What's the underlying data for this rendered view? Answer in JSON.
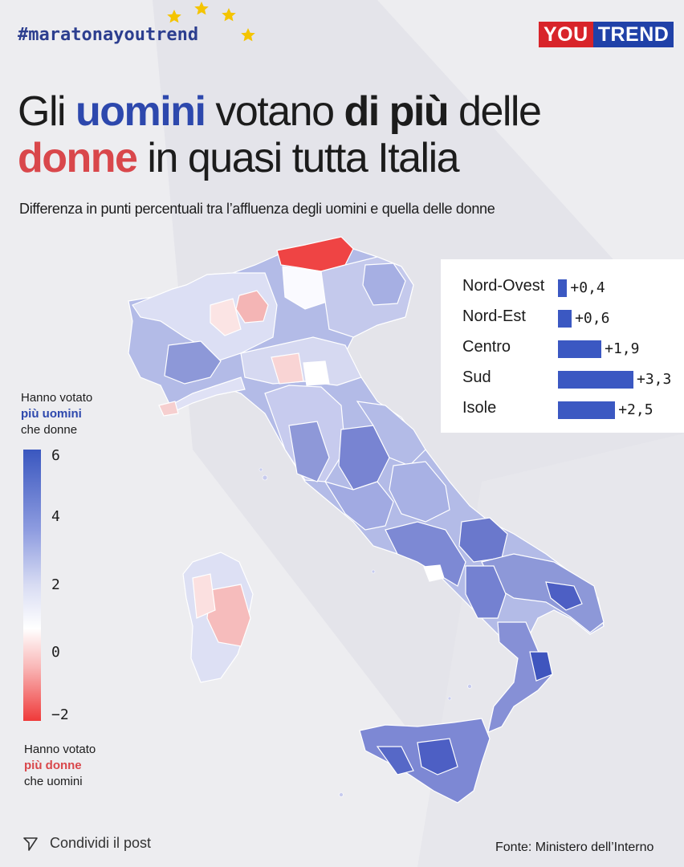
{
  "header": {
    "hashtag": "#maratonayoutrend",
    "logo_you": "YOU",
    "logo_trend": "TREND"
  },
  "title": {
    "line1_part1": "Gli ",
    "line1_men": "uomini",
    "line1_part2": " votano ",
    "line1_more": "di più",
    "line1_part3": " delle",
    "line2_women": "donne",
    "line2_part": " in quasi tutta Italia"
  },
  "subtitle": "Differenza in punti percentuali tra l’affluenza degli uomini e quella delle donne",
  "legend": {
    "top_line1": "Hanno votato",
    "top_line2": "più uomini",
    "top_line3": "che donne",
    "bottom_line1": "Hanno votato",
    "bottom_line2": "più donne",
    "bottom_line3": "che uomini"
  },
  "footer": {
    "share_label": "Condividi il post",
    "source": "Fonte: Ministero dell’Interno"
  },
  "colors": {
    "men_blue": "#2d48ad",
    "women_red": "#d9474b",
    "bar_blue": "#3b58c2"
  },
  "chart_data": [
    {
      "type": "bar",
      "orientation": "horizontal",
      "categories": [
        "Nord-Ovest",
        "Nord-Est",
        "Centro",
        "Sud",
        "Isole"
      ],
      "values": [
        0.4,
        0.6,
        1.9,
        3.3,
        2.5
      ],
      "value_labels": [
        "+0,4",
        "+0,6",
        "+1,9",
        "+3,3",
        "+2,5"
      ],
      "xlim": [
        0,
        3.3
      ],
      "grid": false
    },
    {
      "type": "heatmap",
      "subtype": "choropleth",
      "colorbar_ticks": [
        "6",
        "4",
        "2",
        "0",
        "−2"
      ],
      "colorbar_range": [
        -2,
        6.5
      ],
      "colorscale": [
        "#ef3a3a",
        "#ffffff",
        "#3a57bf"
      ]
    }
  ]
}
